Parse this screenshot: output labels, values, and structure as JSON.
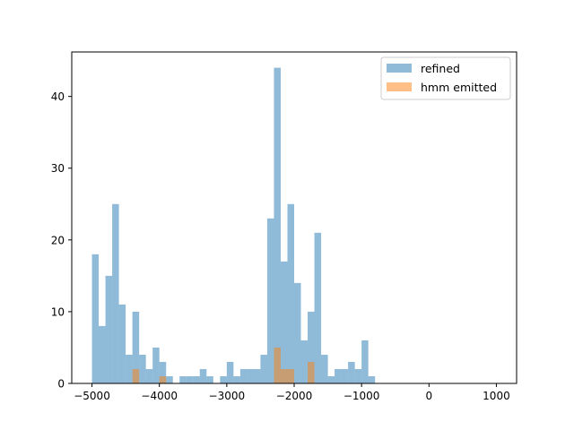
{
  "chart_data": {
    "type": "bar",
    "chart_kind": "overlapping-histogram",
    "title": "",
    "xlabel": "",
    "ylabel": "",
    "xlim": [
      -5300,
      1300
    ],
    "ylim": [
      0,
      46.2
    ],
    "bin_width": 100,
    "x_ticks": [
      -5000,
      -4000,
      -3000,
      -2000,
      -1000,
      0,
      1000
    ],
    "x_tick_labels": [
      "−5000",
      "−4000",
      "−3000",
      "−2000",
      "−1000",
      "0",
      "1000"
    ],
    "y_ticks": [
      0,
      10,
      20,
      30,
      40
    ],
    "y_tick_labels": [
      "0",
      "10",
      "20",
      "30",
      "40"
    ],
    "legend": {
      "position": "upper-right"
    },
    "series": [
      {
        "name": "refined",
        "color": "#1f77b4",
        "alpha": 0.5,
        "bins": [
          [
            -5000,
            18
          ],
          [
            -4900,
            8
          ],
          [
            -4800,
            15
          ],
          [
            -4700,
            25
          ],
          [
            -4600,
            11
          ],
          [
            -4500,
            4
          ],
          [
            -4400,
            10
          ],
          [
            -4300,
            4
          ],
          [
            -4200,
            2
          ],
          [
            -4100,
            5
          ],
          [
            -4000,
            3
          ],
          [
            -3900,
            1
          ],
          [
            -3800,
            0
          ],
          [
            -3700,
            1
          ],
          [
            -3600,
            1
          ],
          [
            -3500,
            1
          ],
          [
            -3400,
            2
          ],
          [
            -3300,
            1
          ],
          [
            -3200,
            0
          ],
          [
            -3100,
            1
          ],
          [
            -3000,
            3
          ],
          [
            -2900,
            1
          ],
          [
            -2800,
            2
          ],
          [
            -2700,
            2
          ],
          [
            -2600,
            2
          ],
          [
            -2500,
            4
          ],
          [
            -2400,
            23
          ],
          [
            -2300,
            44
          ],
          [
            -2200,
            17
          ],
          [
            -2100,
            25
          ],
          [
            -2000,
            14
          ],
          [
            -1900,
            6
          ],
          [
            -1800,
            10
          ],
          [
            -1700,
            21
          ],
          [
            -1600,
            4
          ],
          [
            -1500,
            1
          ],
          [
            -1400,
            2
          ],
          [
            -1300,
            2
          ],
          [
            -1200,
            3
          ],
          [
            -1100,
            2
          ],
          [
            -1000,
            6
          ],
          [
            -900,
            1
          ]
        ]
      },
      {
        "name": "hmm emitted",
        "color": "#ff7f0e",
        "alpha": 0.5,
        "bins": [
          [
            -4400,
            2
          ],
          [
            -4000,
            1
          ],
          [
            -2300,
            5
          ],
          [
            -2200,
            2
          ],
          [
            -2100,
            2
          ],
          [
            -1800,
            3
          ]
        ]
      }
    ]
  }
}
